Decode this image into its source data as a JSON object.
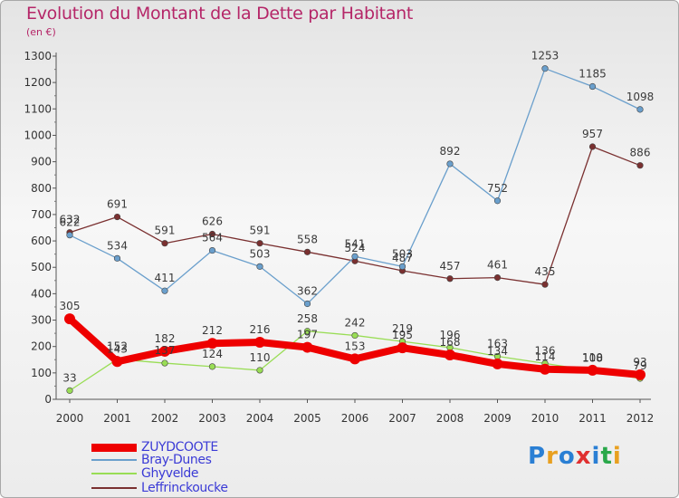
{
  "header": {
    "title": "Evolution du Montant de la Dette par Habitant",
    "subtitle": "(en €)"
  },
  "logo": {
    "text": "Proxiti",
    "colors": [
      "#2a7fd4",
      "#e8a020",
      "#2a7fd4",
      "#e03030",
      "#2a7fd4",
      "#2aa84a",
      "#e8a020"
    ]
  },
  "chart_data": {
    "type": "line",
    "title": "Evolution du Montant de la Dette par Habitant",
    "subtitle": "(en €)",
    "xlabel": "",
    "ylabel": "",
    "categories": [
      "2000",
      "2001",
      "2002",
      "2003",
      "2004",
      "2005",
      "2006",
      "2007",
      "2008",
      "2009",
      "2010",
      "2011",
      "2012"
    ],
    "ylim": [
      0,
      1300
    ],
    "yticks": [
      0,
      100,
      200,
      300,
      400,
      500,
      600,
      700,
      800,
      900,
      1000,
      1100,
      1200,
      1300
    ],
    "grid": false,
    "legend_position": "bottom-left",
    "series": [
      {
        "name": "ZUYDCOOTE",
        "color": "#ee0000",
        "thick": true,
        "values": [
          305,
          143,
          182,
          212,
          216,
          197,
          153,
          195,
          168,
          134,
          114,
          110,
          93
        ],
        "labels": [
          "305",
          "143",
          "182",
          "212",
          "216",
          "197",
          "153",
          "195",
          "168",
          "134",
          "114",
          "110",
          "93"
        ]
      },
      {
        "name": "Bray-Dunes",
        "color": "#6a9fcc",
        "thick": false,
        "values": [
          622,
          534,
          411,
          564,
          503,
          362,
          541,
          503,
          892,
          752,
          1253,
          1185,
          1098
        ],
        "labels": [
          "622",
          "534",
          "411",
          "564",
          "503",
          "362",
          "541",
          "503",
          "892",
          "752",
          "1253",
          "1185",
          "1098"
        ]
      },
      {
        "name": "Ghyvelde",
        "color": "#99dd55",
        "thick": false,
        "values": [
          33,
          152,
          137,
          124,
          110,
          258,
          242,
          219,
          196,
          163,
          136,
          108,
          79
        ],
        "labels": [
          "33",
          "152",
          "137",
          "124",
          "110",
          "258",
          "242",
          "219",
          "196",
          "163",
          "136",
          "108",
          "79"
        ]
      },
      {
        "name": "Leffrinckoucke",
        "color": "#7a3030",
        "thick": false,
        "values": [
          632,
          691,
          591,
          626,
          591,
          558,
          524,
          487,
          457,
          461,
          435,
          957,
          886
        ],
        "labels": [
          "632",
          "691",
          "591",
          "626",
          "591",
          "558",
          "524",
          "487",
          "457",
          "461",
          "435",
          "957",
          "886"
        ]
      }
    ]
  }
}
